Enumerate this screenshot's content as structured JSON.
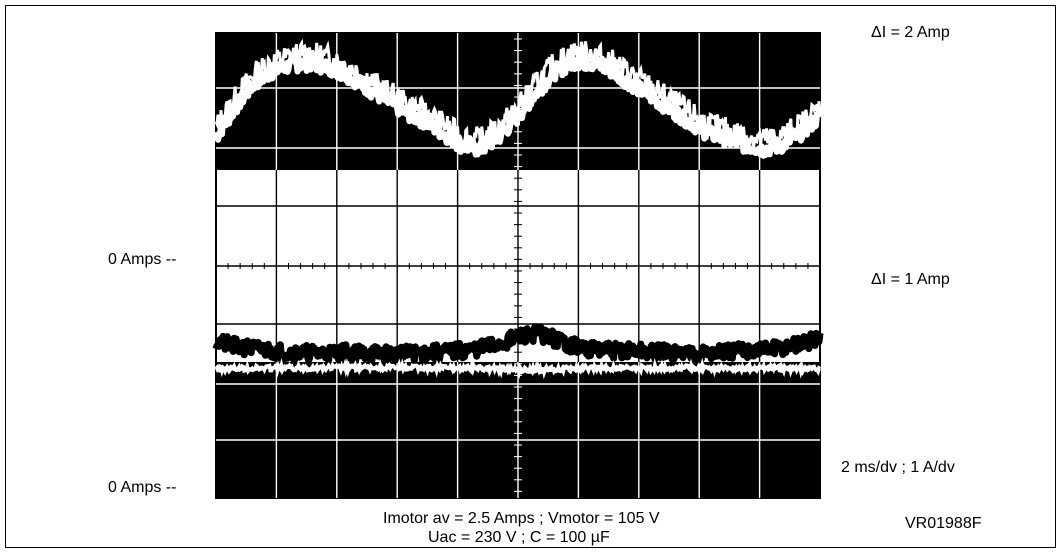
{
  "chart_data": {
    "type": "line",
    "title": "",
    "xlabel": "",
    "ylabel": "",
    "grid": true,
    "grid_divisions": {
      "x": 10,
      "y": 8
    },
    "timebase": "2 ms/dv ; 1 A/dv",
    "traces": [
      {
        "description": "upper trace (white on dark band), current ripple",
        "annotation": "ΔI = 2 Amp",
        "peaks_at_division": [
          1.2,
          5.3
        ],
        "troughs_at_division": [
          4.5,
          9.2
        ],
        "values_div": [
          0.4,
          0.75,
          1.05,
          1.2,
          1.28,
          1.3,
          1.25,
          1.15,
          1.0,
          0.85,
          0.7,
          0.6,
          0.45,
          0.3,
          0.25,
          0.4,
          0.65,
          0.95,
          1.2,
          1.32,
          1.3,
          1.2,
          1.05,
          0.9,
          0.75,
          0.6,
          0.45,
          0.38,
          0.3,
          0.25,
          0.3,
          0.45,
          0.65
        ]
      },
      {
        "description": "lower trace (black on white above dark band), near zero",
        "annotation": "ΔI = 1 Amp",
        "zero_label": "0 Amps --",
        "values_div": [
          0.45,
          0.35,
          0.3,
          0.25,
          0.22,
          0.2,
          0.2,
          0.22,
          0.2,
          0.18,
          0.18,
          0.2,
          0.22,
          0.25,
          0.3,
          0.4,
          0.55,
          0.65,
          0.5,
          0.35,
          0.28,
          0.25,
          0.25,
          0.22,
          0.22,
          0.2,
          0.2,
          0.22,
          0.25,
          0.28,
          0.32,
          0.4,
          0.5
        ]
      }
    ]
  },
  "labels": {
    "zero_upper": "0 Amps --",
    "zero_lower": "0 Amps --",
    "delta_i_2": "ΔI = 2 Amp",
    "delta_i_1": "ΔI = 1 Amp",
    "scale": "2 ms/dv ; 1 A/dv",
    "caption_line1": "Imotor av = 2.5 Amps ;  Vmotor = 105 V",
    "caption_line2": "Uac = 230 V ; C = 100 µF",
    "figure_id": "VR01988F"
  },
  "colors": {
    "band": "#000000",
    "trace_on_dark": "#ffffff",
    "trace_on_light": "#000000",
    "grid_on_dark": "#ffffff",
    "grid_on_light": "#000000"
  }
}
